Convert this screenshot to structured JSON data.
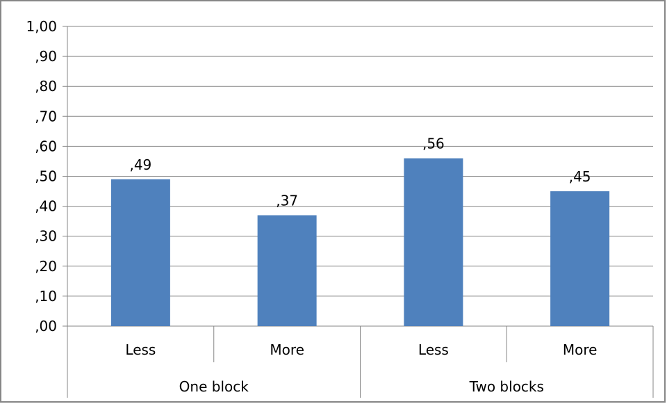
{
  "chart_data": {
    "type": "bar",
    "groups": [
      {
        "label": "One block",
        "categories": [
          "Less",
          "More"
        ],
        "values": [
          0.49,
          0.37
        ]
      },
      {
        "label": "Two blocks",
        "categories": [
          "Less",
          "More"
        ],
        "values": [
          0.56,
          0.45
        ]
      }
    ],
    "data_labels": [
      ",49",
      ",37",
      ",56",
      ",45"
    ],
    "y_ticks": [
      "1,00",
      ",90",
      ",80",
      ",70",
      ",60",
      ",50",
      ",40",
      ",30",
      ",20",
      ",10",
      ",00"
    ],
    "ylim": [
      0,
      1.0
    ],
    "grid": true,
    "legend": false,
    "bar_color": "#4F81BD",
    "gridline_color": "#868686",
    "frame_color": "#868686"
  }
}
